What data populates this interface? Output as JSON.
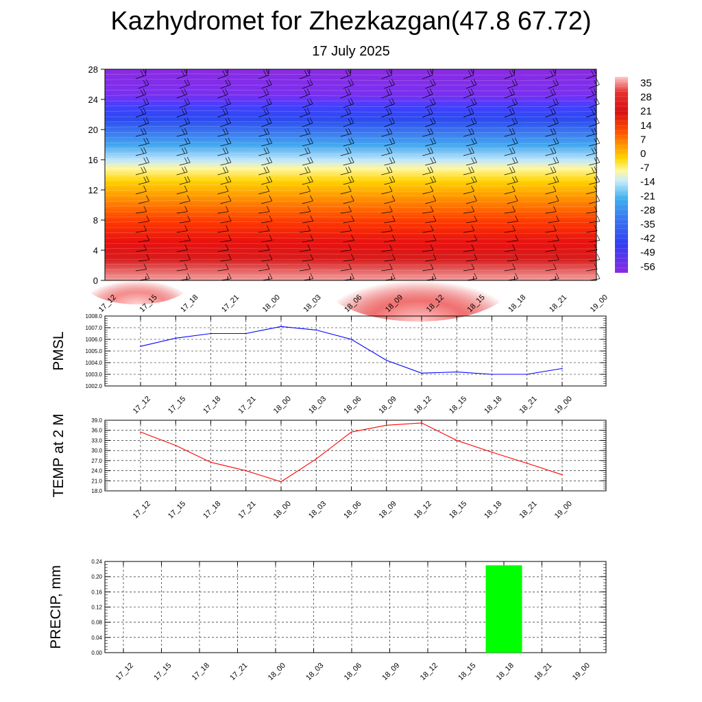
{
  "header": {
    "title": "Kazhydromet for Zhezkazgan(47.8 67.72)",
    "date": "17 July 2025"
  },
  "time_labels": [
    "17_12",
    "17_15",
    "17_18",
    "17_21",
    "18_00",
    "18_03",
    "18_06",
    "18_09",
    "18_12",
    "18_15",
    "18_18",
    "18_21",
    "19_00"
  ],
  "colorbar": {
    "labels": [
      "35",
      "28",
      "21",
      "14",
      "7",
      "0",
      "-7",
      "-14",
      "-21",
      "-28",
      "-35",
      "-42",
      "-49",
      "-56"
    ]
  },
  "chart_data": [
    {
      "type": "heatmap",
      "description_kind": "height-time temperature cross-section with wind barbs",
      "x": [
        "17_12",
        "17_15",
        "17_18",
        "17_21",
        "18_00",
        "18_03",
        "18_06",
        "18_09",
        "18_12",
        "18_15",
        "18_18",
        "18_21",
        "19_00"
      ],
      "y_ticks": [
        "0",
        "4",
        "8",
        "12",
        "16",
        "20",
        "24",
        "28"
      ],
      "ylim": [
        0,
        28
      ],
      "color_range": [
        -56,
        35
      ]
    },
    {
      "type": "line",
      "ylabel": "PMSL",
      "x": [
        "17_12",
        "17_15",
        "17_18",
        "17_21",
        "18_00",
        "18_03",
        "18_06",
        "18_09",
        "18_12",
        "18_15",
        "18_18",
        "18_21",
        "19_00"
      ],
      "y_ticks": [
        "1002.0",
        "1003.0",
        "1004.0",
        "1005.0",
        "1006.0",
        "1007.0",
        "1008.0"
      ],
      "ylim": [
        1002,
        1008
      ],
      "series": [
        {
          "color": "#0000ff",
          "values": [
            1005.4,
            1006.1,
            1006.5,
            1006.5,
            1007.1,
            1006.8,
            1006.0,
            1004.2,
            1003.1,
            1003.2,
            1003.0,
            1003.0,
            1003.5
          ]
        }
      ]
    },
    {
      "type": "line",
      "ylabel": "TEMP at 2 M",
      "x": [
        "17_12",
        "17_15",
        "17_18",
        "17_21",
        "18_00",
        "18_03",
        "18_06",
        "18_09",
        "18_12",
        "18_15",
        "18_18",
        "18_21",
        "19_00"
      ],
      "y_ticks": [
        "18.0",
        "21.0",
        "24.0",
        "27.0",
        "30.0",
        "33.0",
        "36.0",
        "39.0"
      ],
      "ylim": [
        18,
        39
      ],
      "series": [
        {
          "color": "#ff0000",
          "values": [
            35.5,
            31.5,
            26.5,
            24.0,
            20.7,
            27.5,
            35.5,
            37.5,
            38.2,
            33.0,
            29.5,
            26.2,
            22.8
          ]
        }
      ]
    },
    {
      "type": "bar",
      "ylabel": "PRECIP, mm",
      "x": [
        "17_12",
        "17_15",
        "17_18",
        "17_21",
        "18_00",
        "18_03",
        "18_06",
        "18_09",
        "18_12",
        "18_15",
        "18_18",
        "18_21",
        "19_00"
      ],
      "y_ticks": [
        "0.00",
        "0.04",
        "0.08",
        "0.12",
        "0.16",
        "0.20",
        "0.24"
      ],
      "ylim": [
        0,
        0.24
      ],
      "values": [
        0,
        0,
        0,
        0,
        0,
        0,
        0,
        0,
        0,
        0,
        0.23,
        0,
        0
      ],
      "bar_color": "#00ff00"
    }
  ]
}
